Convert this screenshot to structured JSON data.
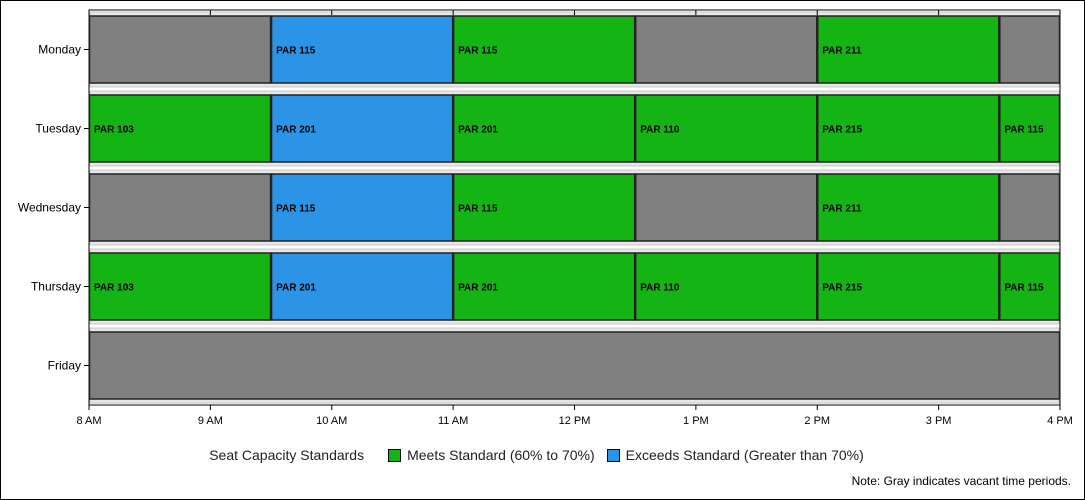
{
  "chart_data": {
    "type": "gantt",
    "title": "",
    "x_range": [
      "8 AM",
      "4 PM"
    ],
    "x_ticks": [
      "8 AM",
      "9 AM",
      "10 AM",
      "11 AM",
      "12 PM",
      "1 PM",
      "2 PM",
      "3 PM",
      "4 PM"
    ],
    "categories": [
      "Monday",
      "Tuesday",
      "Wednesday",
      "Thursday",
      "Friday"
    ],
    "grid": false,
    "legend_position": "bottom",
    "status_colors": {
      "meets": "#14b414",
      "exceeds": "#2b94e6",
      "vacant": "#808080"
    },
    "series": [
      {
        "day": "Monday",
        "segments": [
          {
            "start": "8:00 AM",
            "end": "9:30 AM",
            "status": "vacant",
            "label": ""
          },
          {
            "start": "9:30 AM",
            "end": "11:00 AM",
            "status": "exceeds",
            "label": "PAR 115"
          },
          {
            "start": "11:00 AM",
            "end": "12:30 PM",
            "status": "meets",
            "label": "PAR 115"
          },
          {
            "start": "12:30 PM",
            "end": "2:00 PM",
            "status": "vacant",
            "label": ""
          },
          {
            "start": "2:00 PM",
            "end": "3:30 PM",
            "status": "meets",
            "label": "PAR 211"
          },
          {
            "start": "3:30 PM",
            "end": "4:00 PM",
            "status": "vacant",
            "label": ""
          }
        ]
      },
      {
        "day": "Tuesday",
        "segments": [
          {
            "start": "8:00 AM",
            "end": "9:30 AM",
            "status": "meets",
            "label": "PAR 103"
          },
          {
            "start": "9:30 AM",
            "end": "11:00 AM",
            "status": "exceeds",
            "label": "PAR 201"
          },
          {
            "start": "11:00 AM",
            "end": "12:30 PM",
            "status": "meets",
            "label": "PAR 201"
          },
          {
            "start": "12:30 PM",
            "end": "2:00 PM",
            "status": "meets",
            "label": "PAR 110"
          },
          {
            "start": "2:00 PM",
            "end": "3:30 PM",
            "status": "meets",
            "label": "PAR 215"
          },
          {
            "start": "3:30 PM",
            "end": "4:00 PM",
            "status": "meets",
            "label": "PAR 115"
          }
        ]
      },
      {
        "day": "Wednesday",
        "segments": [
          {
            "start": "8:00 AM",
            "end": "9:30 AM",
            "status": "vacant",
            "label": ""
          },
          {
            "start": "9:30 AM",
            "end": "11:00 AM",
            "status": "exceeds",
            "label": "PAR 115"
          },
          {
            "start": "11:00 AM",
            "end": "12:30 PM",
            "status": "meets",
            "label": "PAR 115"
          },
          {
            "start": "12:30 PM",
            "end": "2:00 PM",
            "status": "vacant",
            "label": ""
          },
          {
            "start": "2:00 PM",
            "end": "3:30 PM",
            "status": "meets",
            "label": "PAR 211"
          },
          {
            "start": "3:30 PM",
            "end": "4:00 PM",
            "status": "vacant",
            "label": ""
          }
        ]
      },
      {
        "day": "Thursday",
        "segments": [
          {
            "start": "8:00 AM",
            "end": "9:30 AM",
            "status": "meets",
            "label": "PAR 103"
          },
          {
            "start": "9:30 AM",
            "end": "11:00 AM",
            "status": "exceeds",
            "label": "PAR 201"
          },
          {
            "start": "11:00 AM",
            "end": "12:30 PM",
            "status": "meets",
            "label": "PAR 201"
          },
          {
            "start": "12:30 PM",
            "end": "2:00 PM",
            "status": "meets",
            "label": "PAR 110"
          },
          {
            "start": "2:00 PM",
            "end": "3:30 PM",
            "status": "meets",
            "label": "PAR 215"
          },
          {
            "start": "3:30 PM",
            "end": "4:00 PM",
            "status": "meets",
            "label": "PAR 115"
          }
        ]
      },
      {
        "day": "Friday",
        "segments": [
          {
            "start": "8:00 AM",
            "end": "4:00 PM",
            "status": "vacant",
            "label": ""
          }
        ]
      }
    ]
  },
  "legend": {
    "title": "Seat Capacity Standards",
    "items": [
      {
        "status": "meets",
        "label": "Meets Standard (60% to 70%)"
      },
      {
        "status": "exceeds",
        "label": "Exceeds Standard (Greater than 70%)"
      }
    ]
  },
  "note": "Note: Gray indicates vacant time periods."
}
